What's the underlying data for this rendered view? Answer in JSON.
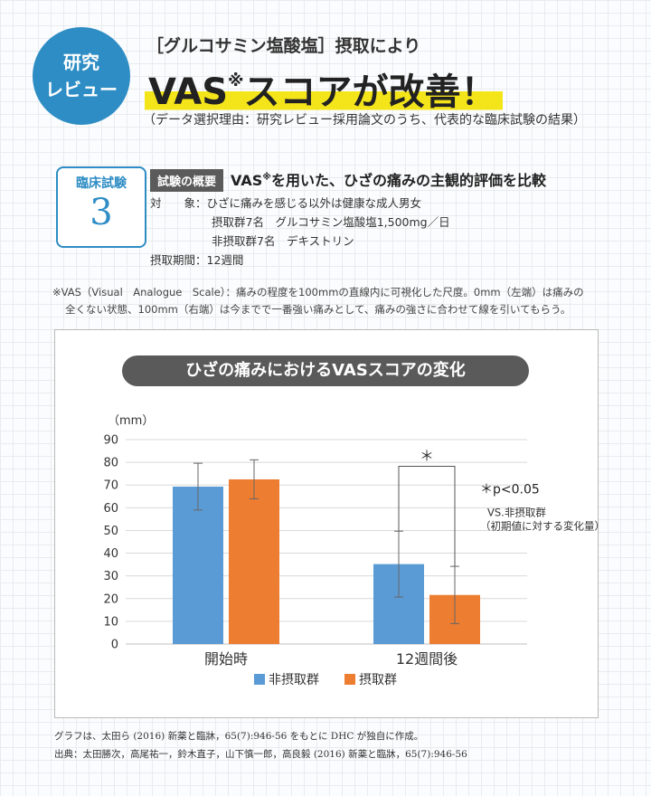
{
  "badge": {
    "line1": "研究",
    "line2": "レビュー"
  },
  "header": {
    "subtitle": "［グルコサミン塩酸塩］摂取により",
    "headline_a": "VAS",
    "headline_mark": "※",
    "headline_b": "スコアが改善！",
    "reason": "（データ選択理由：研究レビュー採用論文のうち、代表的な臨床試験の結果）"
  },
  "trial": {
    "label": "臨床試験",
    "number": "3"
  },
  "overview": {
    "tag": "試験の概要",
    "title_a": "VAS",
    "title_mark": "※",
    "title_b": "を用いた、ひざの痛みの主観的評価を比較",
    "subject_key": "対　　象：",
    "subject_val": "ひざに痛みを感じる以外は健康な成人男女",
    "group1": "摂取群7名　グルコサミン塩酸塩1,500mg／日",
    "group2": "非摂取群7名　デキストリン",
    "period_key": "摂取期間：",
    "period_val": "12週間"
  },
  "note": {
    "line1": "※VAS（Visual　Analogue　Scale）：痛みの程度を100mmの直線内に可視化した尺度。0mm（左端）は痛みの",
    "line2": "全くない状態、100mm（右端）は今までで一番強い痛みとして、痛みの強さに合わせて線を引いてもらう。"
  },
  "chart_data": {
    "type": "bar",
    "title": "ひざの痛みにおけるVASスコアの変化",
    "ylabel": "（mm）",
    "ylim": [
      0,
      90
    ],
    "yticks": [
      0,
      10,
      20,
      30,
      40,
      50,
      60,
      70,
      80,
      90
    ],
    "categories": [
      "開始時",
      "12週間後"
    ],
    "series": [
      {
        "name": "非摂取群",
        "color": "#5b9bd5",
        "values": [
          69.3,
          35.2
        ],
        "error": [
          10.3,
          14.5
        ]
      },
      {
        "name": "摂取群",
        "color": "#ed7d31",
        "values": [
          72.5,
          21.6
        ],
        "error": [
          8.6,
          12.6
        ]
      }
    ],
    "significance": {
      "marker": "＊",
      "label": "＊p<0.05",
      "vs_line1": "VS.非摂取群",
      "vs_line2": "（初期値に対する変化量）"
    }
  },
  "footer": {
    "line1": "グラフは、太田ら (2016) 新薬と臨牀，65(7):946-56 をもとに DHC が独自に作成。",
    "line2": "出典：太田勝次，高尾祐一，鈴木直子，山下慎一郎，高良毅 (2016) 新薬と臨牀，65(7):946-56"
  }
}
